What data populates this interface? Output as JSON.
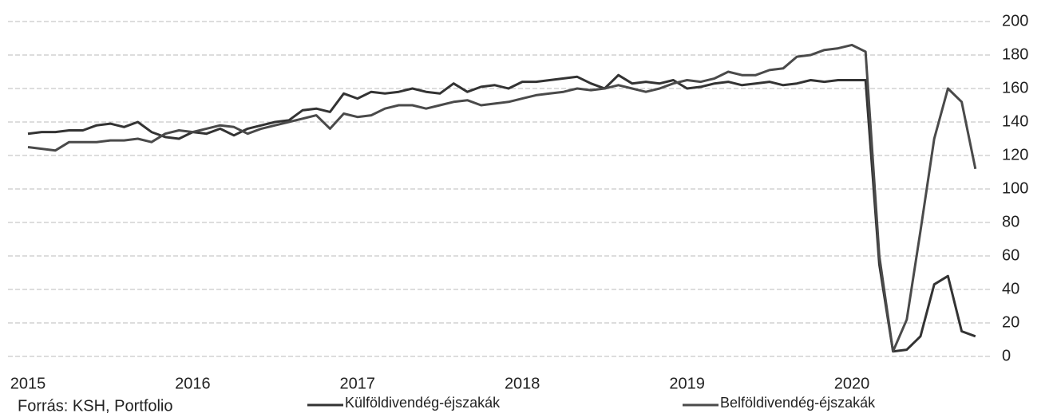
{
  "chart_data": {
    "type": "line",
    "source": "Forrás: KSH, Portfolio",
    "categories": [
      "2015",
      null,
      null,
      null,
      null,
      null,
      null,
      null,
      null,
      null,
      null,
      null,
      "2016",
      null,
      null,
      null,
      null,
      null,
      null,
      null,
      null,
      null,
      null,
      null,
      "2017",
      null,
      null,
      null,
      null,
      null,
      null,
      null,
      null,
      null,
      null,
      null,
      "2018",
      null,
      null,
      null,
      null,
      null,
      null,
      null,
      null,
      null,
      null,
      null,
      "2019",
      null,
      null,
      null,
      null,
      null,
      null,
      null,
      null,
      null,
      null,
      null,
      "2020",
      null,
      null,
      null,
      null,
      null,
      null,
      null,
      null,
      null
    ],
    "series": [
      {
        "name": "Külföldivendég-éjszakák",
        "color": "#333333",
        "values": [
          133,
          134,
          134,
          135,
          135,
          138,
          139,
          137,
          140,
          134,
          131,
          130,
          134,
          133,
          136,
          132,
          136,
          138,
          140,
          141,
          147,
          148,
          146,
          157,
          154,
          158,
          157,
          158,
          160,
          158,
          157,
          163,
          158,
          161,
          162,
          160,
          164,
          164,
          165,
          166,
          167,
          163,
          160,
          168,
          163,
          164,
          163,
          165,
          160,
          161,
          163,
          164,
          162,
          163,
          164,
          162,
          163,
          165,
          164,
          165,
          165,
          165,
          55,
          3,
          4,
          12,
          43,
          48,
          15,
          12
        ]
      },
      {
        "name": "Belföldivendég-éjszakák",
        "color": "#4a4a4a",
        "values": [
          125,
          124,
          123,
          128,
          128,
          128,
          129,
          129,
          130,
          128,
          133,
          135,
          134,
          136,
          138,
          137,
          133,
          136,
          138,
          140,
          142,
          144,
          136,
          145,
          143,
          144,
          148,
          150,
          150,
          148,
          150,
          152,
          153,
          150,
          151,
          152,
          154,
          156,
          157,
          158,
          160,
          159,
          160,
          162,
          160,
          158,
          160,
          163,
          165,
          164,
          166,
          170,
          168,
          168,
          171,
          172,
          179,
          180,
          183,
          184,
          186,
          182,
          60,
          3,
          22,
          75,
          130,
          160,
          152,
          112
        ]
      }
    ],
    "ylim": [
      0,
      200
    ],
    "yticks": [
      0,
      20,
      40,
      60,
      80,
      100,
      120,
      140,
      160,
      180,
      200
    ],
    "grid": true
  }
}
